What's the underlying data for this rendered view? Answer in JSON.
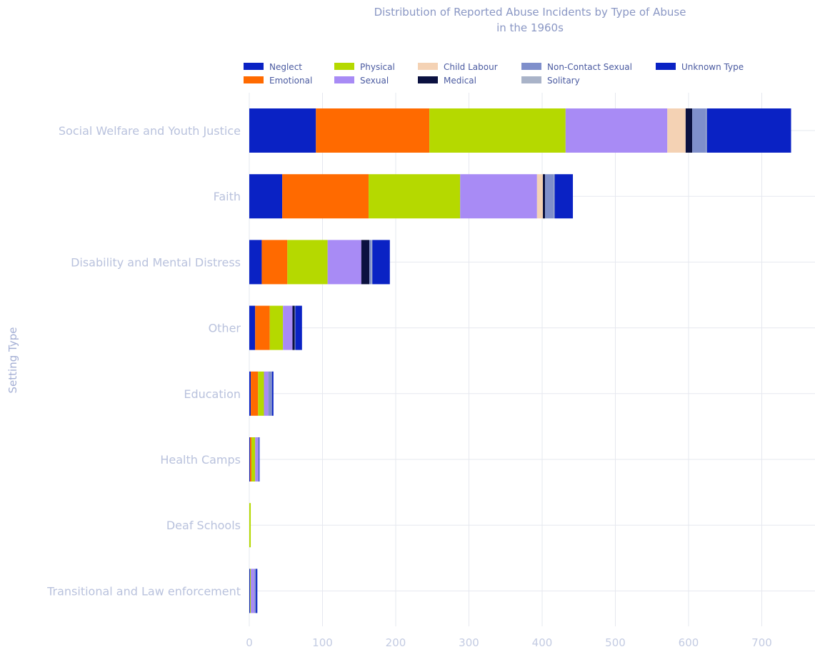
{
  "chart_data": {
    "type": "bar",
    "orientation": "horizontal",
    "stacked": true,
    "title": "Distribution of Reported Abuse Incidents by Type of Abuse",
    "title_line2": "in the 1960s",
    "xlabel": "",
    "ylabel": "Setting Type",
    "xlim": [
      0,
      760
    ],
    "xticks": [
      0,
      100,
      200,
      300,
      400,
      500,
      600,
      700
    ],
    "grid": true,
    "legend_position": "top",
    "categories": [
      "Social Welfare and Youth Justice",
      "Faith",
      "Disability and Mental Distress",
      "Other",
      "Education",
      "Health Camps",
      "Deaf Schools",
      "Transitional and Law enforcement"
    ],
    "series": [
      {
        "name": "Neglect",
        "color": "#0a22c4",
        "values": [
          91,
          45,
          17,
          8,
          2,
          1,
          0,
          1
        ]
      },
      {
        "name": "Emotional",
        "color": "#ff6a00",
        "values": [
          155,
          118,
          35,
          20,
          10,
          2,
          0,
          0
        ]
      },
      {
        "name": "Physical",
        "color": "#b5d900",
        "values": [
          186,
          125,
          55,
          18,
          8,
          5,
          2,
          1
        ]
      },
      {
        "name": "Sexual",
        "color": "#a88bf5",
        "values": [
          139,
          105,
          46,
          13,
          6,
          4,
          0,
          5
        ]
      },
      {
        "name": "Child Labour",
        "color": "#f4d2b4",
        "values": [
          25,
          8,
          0,
          0,
          0,
          0,
          0,
          0
        ]
      },
      {
        "name": "Medical",
        "color": "#0b1140",
        "values": [
          9,
          3,
          11,
          3,
          0,
          0,
          0,
          0
        ]
      },
      {
        "name": "Non-Contact Sexual",
        "color": "#7f8fcb",
        "values": [
          19,
          12,
          3,
          1,
          5,
          1,
          0,
          2
        ]
      },
      {
        "name": "Solitary",
        "color": "#a9b3c8",
        "values": [
          1,
          1,
          1,
          0,
          0,
          0,
          0,
          0
        ]
      },
      {
        "name": "Unknown Type",
        "color": "#0a22c4",
        "values": [
          115,
          25,
          24,
          9,
          2,
          1,
          0,
          2
        ]
      }
    ]
  }
}
